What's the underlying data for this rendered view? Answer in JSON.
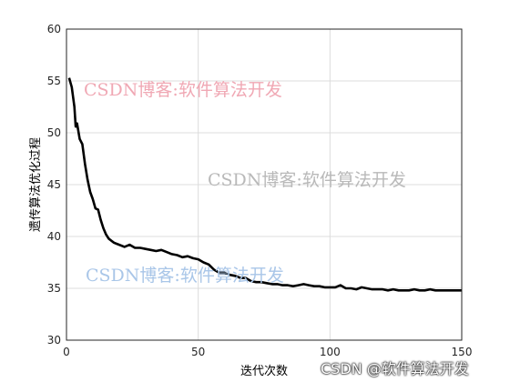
{
  "chart_data": {
    "type": "line",
    "title": "",
    "xlabel": "迭代次数",
    "ylabel": "遗传算法优化过程",
    "xlim": [
      0,
      150
    ],
    "ylim": [
      30,
      60
    ],
    "xticks": [
      "0",
      "50",
      "100",
      "150"
    ],
    "yticks": [
      "30",
      "35",
      "40",
      "45",
      "50",
      "55",
      "60"
    ],
    "grid": true,
    "line_color": "#000000",
    "series": [
      {
        "x": [
          1,
          2,
          3,
          3.5,
          4,
          5,
          6,
          7,
          8,
          9,
          10,
          11,
          12,
          13,
          14,
          15,
          16,
          17,
          18,
          19,
          20,
          22,
          24,
          26,
          28,
          30,
          32,
          34,
          36,
          38,
          40,
          42,
          44,
          46,
          48,
          50,
          52,
          54,
          56,
          58,
          60,
          62,
          64,
          66,
          68,
          70,
          72,
          74,
          76,
          78,
          80,
          82,
          84,
          86,
          88,
          90,
          92,
          94,
          96,
          98,
          100,
          102,
          104,
          106,
          108,
          110,
          112,
          114,
          116,
          118,
          120,
          122,
          124,
          126,
          128,
          130,
          132,
          134,
          136,
          138,
          140,
          142,
          144,
          146,
          148,
          150
        ],
        "y": [
          55.3,
          54.4,
          52.5,
          50.6,
          50.9,
          49.4,
          48.9,
          47.0,
          45.5,
          44.3,
          43.6,
          42.7,
          42.6,
          41.6,
          40.8,
          40.2,
          39.8,
          39.6,
          39.4,
          39.3,
          39.2,
          39.0,
          39.2,
          38.9,
          38.9,
          38.8,
          38.7,
          38.6,
          38.7,
          38.5,
          38.3,
          38.2,
          38.0,
          38.1,
          37.9,
          37.8,
          37.5,
          37.3,
          36.8,
          36.5,
          36.5,
          36.3,
          36.2,
          36.0,
          36.0,
          35.7,
          35.6,
          35.6,
          35.5,
          35.4,
          35.4,
          35.3,
          35.3,
          35.2,
          35.3,
          35.4,
          35.3,
          35.2,
          35.2,
          35.1,
          35.1,
          35.1,
          35.3,
          35.0,
          35.0,
          34.9,
          35.1,
          35.0,
          34.9,
          34.9,
          34.9,
          34.8,
          34.9,
          34.8,
          34.8,
          34.8,
          34.9,
          34.8,
          34.8,
          34.9,
          34.8,
          34.8,
          34.8,
          34.8,
          34.8,
          34.8
        ]
      }
    ]
  },
  "watermarks": [
    {
      "text": "CSDN博客:软件算法开发",
      "color": "#f0a8b4"
    },
    {
      "text": "CSDN博客:软件算法开发",
      "color": "#b9b9b9"
    },
    {
      "text": "CSDN博客:软件算法开发",
      "color": "#a9c6e8"
    }
  ],
  "footer": {
    "text": "CSDN @软件算法开发"
  }
}
